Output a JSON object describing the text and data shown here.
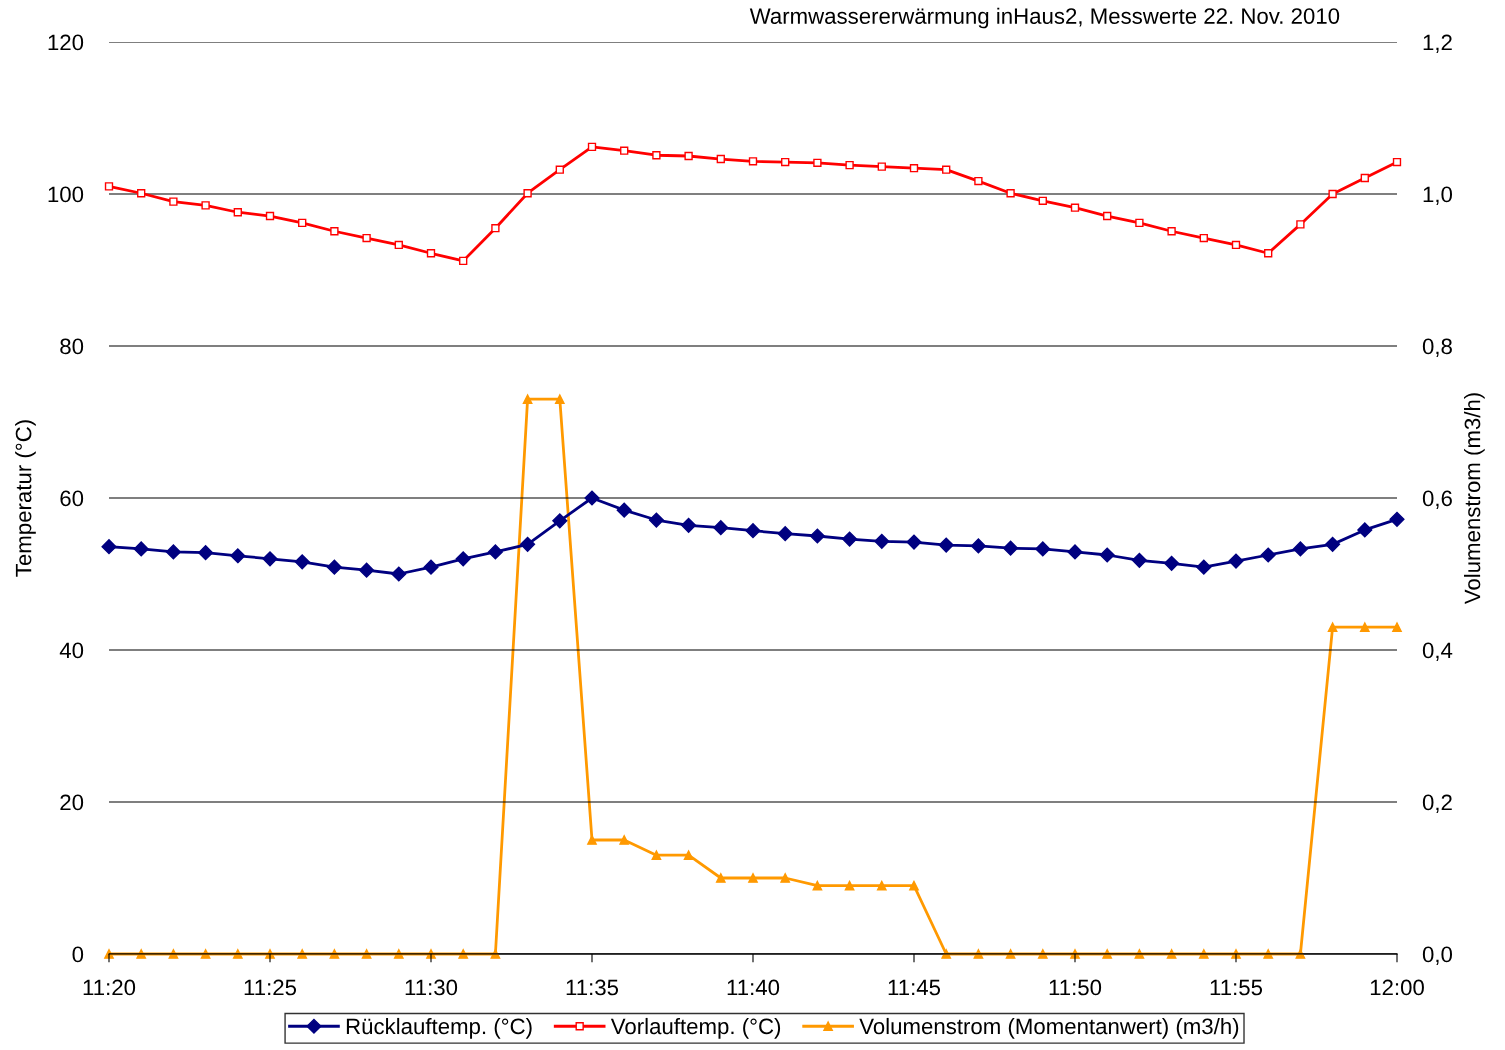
{
  "chart_data": {
    "type": "line",
    "title": "Warmwassererwärmung inHaus2, Messwerte 22. Nov. 2010",
    "ylabel": "Temperatur (°C)",
    "y2label": "Volumenstrom (m3/h)",
    "x": [
      "2010-11-22T11:20",
      "2010-11-22T11:21",
      "2010-11-22T11:22",
      "2010-11-22T11:23",
      "2010-11-22T11:24",
      "2010-11-22T11:25",
      "2010-11-22T11:26",
      "2010-11-22T11:27",
      "2010-11-22T11:28",
      "2010-11-22T11:29",
      "2010-11-22T11:30",
      "2010-11-22T11:31",
      "2010-11-22T11:32",
      "2010-11-22T11:33",
      "2010-11-22T11:34",
      "2010-11-22T11:35",
      "2010-11-22T11:36",
      "2010-11-22T11:37",
      "2010-11-22T11:38",
      "2010-11-22T11:39",
      "2010-11-22T11:40",
      "2010-11-22T11:41",
      "2010-11-22T11:42",
      "2010-11-22T11:43",
      "2010-11-22T11:44",
      "2010-11-22T11:45",
      "2010-11-22T11:46",
      "2010-11-22T11:47",
      "2010-11-22T11:48",
      "2010-11-22T11:49",
      "2010-11-22T11:50",
      "2010-11-22T11:51",
      "2010-11-22T11:52",
      "2010-11-22T11:53",
      "2010-11-22T11:54",
      "2010-11-22T11:55",
      "2010-11-22T11:56",
      "2010-11-22T11:57",
      "2010-11-22T11:58",
      "2010-11-22T11:59",
      "2010-11-22T12:00"
    ],
    "series": [
      {
        "name": "Rücklauftemp. (°C)",
        "color": "#000080",
        "marker": "diamond",
        "values": [
          53.6,
          53.3,
          52.9,
          52.8,
          52.4,
          52.0,
          51.6,
          50.9,
          50.5,
          50.0,
          50.9,
          52.0,
          52.9,
          53.9,
          57.0,
          60.0,
          58.4,
          57.1,
          56.4,
          56.1,
          55.7,
          55.3,
          55.0,
          54.6,
          54.3,
          54.2,
          53.8,
          53.7,
          53.4,
          53.3,
          52.9,
          52.5,
          51.8,
          51.4,
          50.9,
          51.7,
          52.5,
          53.3,
          53.9,
          55.8,
          57.2
        ]
      },
      {
        "name": "Vorlauftemp. (°C)",
        "color": "#ff0000",
        "marker": "square",
        "values": [
          101.0,
          100.1,
          99.0,
          98.5,
          97.6,
          97.1,
          96.2,
          95.1,
          94.2,
          93.3,
          92.2,
          91.2,
          95.5,
          100.1,
          103.2,
          106.2,
          105.7,
          105.1,
          105.0,
          104.6,
          104.3,
          104.2,
          104.1,
          103.8,
          103.6,
          103.4,
          103.2,
          101.7,
          100.1,
          99.1,
          98.2,
          97.1,
          96.2,
          95.1,
          94.2,
          93.3,
          92.2,
          96.0,
          100.0,
          102.1,
          104.2
        ]
      },
      {
        "name": "Volumenstrom (Momentanwert) (m3/h)",
        "color": "#ff9900",
        "marker": "triangle",
        "axis": "y2",
        "values": [
          0,
          0,
          0,
          0,
          0,
          0,
          0,
          0,
          0,
          0,
          0,
          0,
          0,
          0.73,
          0.73,
          0.15,
          0.15,
          0.13,
          0.13,
          0.1,
          0.1,
          0.1,
          0.09,
          0.09,
          0.09,
          0.09,
          0,
          0,
          0,
          0,
          0,
          0,
          0,
          0,
          0,
          0,
          0,
          0,
          0.43,
          0.43,
          0.43
        ]
      }
    ],
    "xlim": [
      "2010-11-22T11:20",
      "2010-11-22T12:00"
    ],
    "xticks": [
      {
        "value": "2010-11-22T11:20",
        "label": "11:20"
      },
      {
        "value": "2010-11-22T11:25",
        "label": "11:25"
      },
      {
        "value": "2010-11-22T11:30",
        "label": "11:30"
      },
      {
        "value": "2010-11-22T11:35",
        "label": "11:35"
      },
      {
        "value": "2010-11-22T11:40",
        "label": "11:40"
      },
      {
        "value": "2010-11-22T11:45",
        "label": "11:45"
      },
      {
        "value": "2010-11-22T11:50",
        "label": "11:50"
      },
      {
        "value": "2010-11-22T11:55",
        "label": "11:55"
      },
      {
        "value": "2010-11-22T12:00",
        "label": "12:00"
      }
    ],
    "ylim": [
      0,
      120
    ],
    "yticks": [
      0,
      20,
      40,
      60,
      80,
      100,
      120
    ],
    "y2lim": [
      0,
      1.2
    ],
    "y2ticks": [
      {
        "value": 0,
        "label": "0,0"
      },
      {
        "value": 0.2,
        "label": "0,2"
      },
      {
        "value": 0.4,
        "label": "0,4"
      },
      {
        "value": 0.6,
        "label": "0,6"
      },
      {
        "value": 0.8,
        "label": "0,8"
      },
      {
        "value": 1.0,
        "label": "1,0"
      },
      {
        "value": 1.2,
        "label": "1,2"
      }
    ],
    "grid": "y",
    "legend": "bottom",
    "line_style": "solid"
  }
}
